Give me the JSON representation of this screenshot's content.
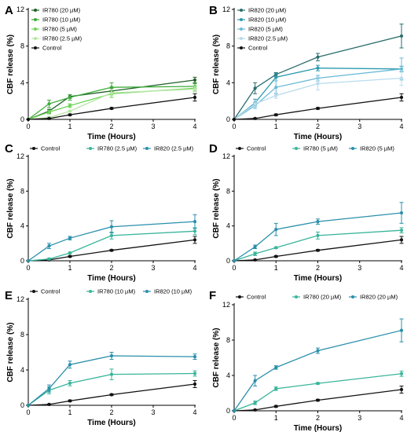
{
  "chart_data": [
    {
      "panel": "A",
      "type": "line",
      "xlabel": "Time (Hours)",
      "ylabel": "CBF release (%)",
      "xlim": [
        0,
        4
      ],
      "ylim": [
        0,
        12
      ],
      "xticks": [
        0,
        1,
        2,
        3,
        4
      ],
      "yticks": [
        0,
        4,
        8,
        12
      ],
      "x": [
        0,
        0.5,
        1,
        2,
        4
      ],
      "legend_position": "top-left",
      "legend_layout": "vertical",
      "series": [
        {
          "name": "IR780 (20 µM)",
          "color": "#1e5f25",
          "values": [
            0,
            0.9,
            2.5,
            3.1,
            4.3
          ],
          "errors": [
            0,
            0.2,
            0.2,
            0.3,
            0.3
          ]
        },
        {
          "name": "IR780 (10 µM)",
          "color": "#3dab3a",
          "values": [
            0,
            1.7,
            2.4,
            3.5,
            3.6
          ],
          "errors": [
            0,
            0.4,
            0.3,
            0.5,
            0.3
          ]
        },
        {
          "name": "IR780 (5 µM)",
          "color": "#6ed45a",
          "values": [
            0,
            0.8,
            1.5,
            2.8,
            3.4
          ],
          "errors": [
            0,
            0.2,
            0.2,
            0.4,
            0.3
          ]
        },
        {
          "name": "IR780 (2.5 µM)",
          "color": "#b7e6a5",
          "values": [
            0,
            0.2,
            0.9,
            2.9,
            3.3
          ],
          "errors": [
            0,
            0.1,
            0.1,
            0.3,
            0.3
          ]
        },
        {
          "name": "Control",
          "color": "#111111",
          "values": [
            0,
            0.1,
            0.5,
            1.2,
            2.4
          ],
          "errors": [
            0,
            0.05,
            0.1,
            0.1,
            0.4
          ]
        }
      ]
    },
    {
      "panel": "B",
      "type": "line",
      "xlabel": "Time (Hours)",
      "ylabel": "CBF release (%)",
      "xlim": [
        0,
        4
      ],
      "ylim": [
        0,
        12
      ],
      "xticks": [
        0,
        1,
        2,
        3,
        4
      ],
      "yticks": [
        0,
        4,
        8,
        12
      ],
      "x": [
        0,
        0.5,
        1,
        2,
        4
      ],
      "legend_position": "top-left",
      "legend_layout": "vertical",
      "series": [
        {
          "name": "IR820 (20 µM)",
          "color": "#2a6d6d",
          "values": [
            0,
            3.4,
            4.9,
            6.8,
            9.1
          ],
          "errors": [
            0,
            0.6,
            0.2,
            0.4,
            1.3
          ]
        },
        {
          "name": "IR820 (10 µM)",
          "color": "#2c9aae",
          "values": [
            0,
            1.8,
            4.6,
            5.6,
            5.5
          ],
          "errors": [
            0,
            0.4,
            0.4,
            0.3,
            0.3
          ]
        },
        {
          "name": "IR820 (5 µM)",
          "color": "#6bbad8",
          "values": [
            0,
            1.5,
            3.5,
            4.5,
            5.5
          ],
          "errors": [
            0,
            0.3,
            0.7,
            0.3,
            1.2
          ]
        },
        {
          "name": "IR820 (2.5 µM)",
          "color": "#b8dcec",
          "values": [
            0,
            1.7,
            2.6,
            3.9,
            4.5
          ],
          "errors": [
            0,
            0.3,
            0.3,
            0.7,
            0.8
          ]
        },
        {
          "name": "Control",
          "color": "#111111",
          "values": [
            0,
            0.1,
            0.5,
            1.2,
            2.4
          ],
          "errors": [
            0,
            0.05,
            0.1,
            0.1,
            0.4
          ]
        }
      ]
    },
    {
      "panel": "C",
      "type": "line",
      "xlabel": "Time (Hours)",
      "ylabel": "CBF release (%)",
      "xlim": [
        0,
        4
      ],
      "ylim": [
        0,
        12
      ],
      "xticks": [
        0,
        1,
        2,
        3,
        4
      ],
      "yticks": [
        0,
        4,
        8,
        12
      ],
      "x": [
        0,
        0.5,
        1,
        2,
        4
      ],
      "legend_position": "top",
      "legend_layout": "horizontal",
      "series": [
        {
          "name": "Control",
          "color": "#111111",
          "values": [
            0,
            0.1,
            0.5,
            1.2,
            2.4
          ],
          "errors": [
            0,
            0.05,
            0.1,
            0.1,
            0.4
          ]
        },
        {
          "name": "IR780 (2.5 µM)",
          "color": "#38b59a",
          "values": [
            0,
            0.2,
            0.9,
            2.9,
            3.4
          ],
          "errors": [
            0,
            0.1,
            0.1,
            0.4,
            0.4
          ]
        },
        {
          "name": "IR820 (2.5 µM)",
          "color": "#2a8fab",
          "values": [
            0,
            1.7,
            2.6,
            3.9,
            4.5
          ],
          "errors": [
            0,
            0.3,
            0.2,
            0.7,
            0.8
          ]
        }
      ]
    },
    {
      "panel": "D",
      "type": "line",
      "xlabel": "Time (Hours)",
      "ylabel": "CBF release (%)",
      "xlim": [
        0,
        4
      ],
      "ylim": [
        0,
        12
      ],
      "xticks": [
        0,
        1,
        2,
        3,
        4
      ],
      "yticks": [
        0,
        4,
        8,
        12
      ],
      "x": [
        0,
        0.5,
        1,
        2,
        4
      ],
      "legend_position": "top",
      "legend_layout": "horizontal",
      "series": [
        {
          "name": "Control",
          "color": "#111111",
          "values": [
            0,
            0.1,
            0.5,
            1.2,
            2.4
          ],
          "errors": [
            0,
            0.05,
            0.1,
            0.1,
            0.4
          ]
        },
        {
          "name": "IR780 (5 µM)",
          "color": "#38b59a",
          "values": [
            0,
            0.8,
            1.5,
            2.9,
            3.5
          ],
          "errors": [
            0,
            0.2,
            0.1,
            0.4,
            0.3
          ]
        },
        {
          "name": "IR820 (5 µM)",
          "color": "#2a8fab",
          "values": [
            0,
            1.6,
            3.6,
            4.5,
            5.5
          ],
          "errors": [
            0,
            0.2,
            0.7,
            0.3,
            1.2
          ]
        }
      ]
    },
    {
      "panel": "E",
      "type": "line",
      "xlabel": "Time (Hours)",
      "ylabel": "CBF release (%)",
      "xlim": [
        0,
        4
      ],
      "ylim": [
        0,
        12
      ],
      "xticks": [
        0,
        1,
        2,
        3,
        4
      ],
      "yticks": [
        0,
        4,
        8,
        12
      ],
      "x": [
        0,
        0.5,
        1,
        2,
        4
      ],
      "legend_position": "top",
      "legend_layout": "horizontal",
      "series": [
        {
          "name": "Control",
          "color": "#111111",
          "values": [
            0,
            0.1,
            0.5,
            1.2,
            2.4
          ],
          "errors": [
            0,
            0.05,
            0.1,
            0.1,
            0.4
          ]
        },
        {
          "name": "IR780 (10 µM)",
          "color": "#38b59a",
          "values": [
            0,
            1.7,
            2.5,
            3.5,
            3.6
          ],
          "errors": [
            0,
            0.4,
            0.3,
            0.6,
            0.3
          ]
        },
        {
          "name": "IR820 (10 µM)",
          "color": "#2a8fab",
          "values": [
            0,
            1.9,
            4.6,
            5.6,
            5.5
          ],
          "errors": [
            0,
            0.4,
            0.4,
            0.4,
            0.3
          ]
        }
      ]
    },
    {
      "panel": "F",
      "type": "line",
      "xlabel": "Time (Hours)",
      "ylabel": "CBF release (%)",
      "xlim": [
        0,
        4
      ],
      "ylim": [
        0,
        12
      ],
      "xticks": [
        0,
        1,
        2,
        3,
        4
      ],
      "yticks": [
        0,
        4,
        8,
        12
      ],
      "x": [
        0,
        0.5,
        1,
        2,
        4
      ],
      "legend_position": "top",
      "legend_layout": "horizontal",
      "series": [
        {
          "name": "Control",
          "color": "#111111",
          "values": [
            0,
            0.1,
            0.5,
            1.2,
            2.4
          ],
          "errors": [
            0,
            0.05,
            0.1,
            0.1,
            0.4
          ]
        },
        {
          "name": "IR780 (20 µM)",
          "color": "#38b59a",
          "values": [
            0,
            0.9,
            2.5,
            3.1,
            4.2
          ],
          "errors": [
            0,
            0.2,
            0.2,
            0.1,
            0.3
          ]
        },
        {
          "name": "IR820 (20 µM)",
          "color": "#2a8fab",
          "values": [
            0,
            3.4,
            4.9,
            6.8,
            9.1
          ],
          "errors": [
            0,
            0.6,
            0.2,
            0.3,
            1.3
          ]
        }
      ]
    }
  ]
}
